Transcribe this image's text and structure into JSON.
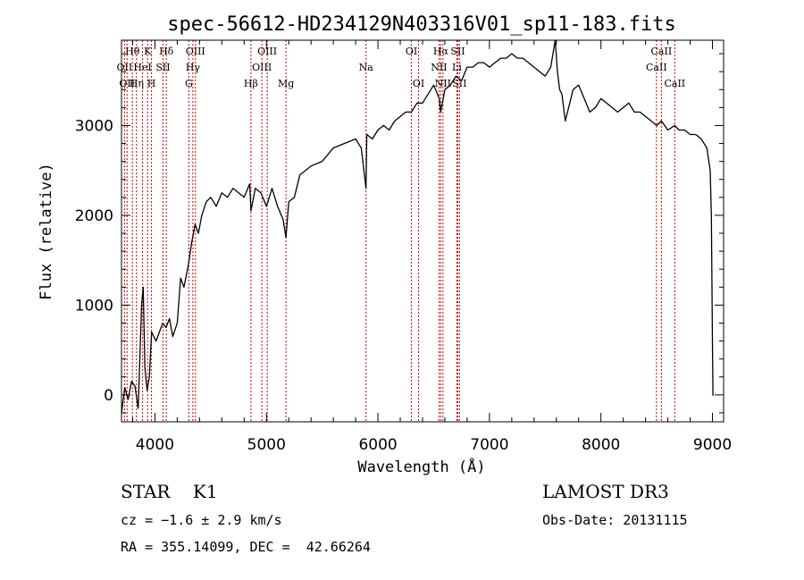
{
  "chart_data": {
    "type": "line",
    "title": "spec-56612-HD234129N403316V01_sp11-183.fits",
    "xlabel": "Wavelength (Å)",
    "ylabel": "Flux (relative)",
    "xlim": [
      3700,
      9100
    ],
    "ylim": [
      -300,
      3950
    ],
    "xticks": [
      4000,
      5000,
      6000,
      7000,
      8000,
      9000
    ],
    "yticks": [
      0,
      1000,
      2000,
      3000
    ],
    "grid": false,
    "series": [
      {
        "x": [
          3700,
          3730,
          3760,
          3790,
          3820,
          3850,
          3880,
          3895,
          3910,
          3930,
          3950,
          3970,
          3990,
          4010,
          4040,
          4070,
          4100,
          4130,
          4160,
          4200,
          4230,
          4260,
          4300,
          4330,
          4360,
          4390,
          4420,
          4460,
          4500,
          4550,
          4600,
          4650,
          4700,
          4750,
          4800,
          4850,
          4861,
          4900,
          4950,
          5000,
          5050,
          5100,
          5150,
          5175,
          5200,
          5250,
          5300,
          5400,
          5500,
          5600,
          5700,
          5800,
          5850,
          5893,
          5900,
          5950,
          6000,
          6050,
          6100,
          6150,
          6200,
          6250,
          6300,
          6350,
          6400,
          6450,
          6500,
          6550,
          6563,
          6600,
          6650,
          6700,
          6750,
          6800,
          6850,
          6900,
          6950,
          7000,
          7050,
          7100,
          7150,
          7200,
          7250,
          7300,
          7350,
          7400,
          7450,
          7500,
          7550,
          7590,
          7610,
          7630,
          7650,
          7680,
          7700,
          7720,
          7750,
          7800,
          7850,
          7900,
          7950,
          8000,
          8050,
          8100,
          8150,
          8200,
          8250,
          8300,
          8350,
          8400,
          8450,
          8500,
          8542,
          8600,
          8662,
          8700,
          8750,
          8800,
          8850,
          8900,
          8950,
          8980,
          8990,
          9000,
          9005
        ],
        "y": [
          -200,
          80,
          -50,
          150,
          100,
          -150,
          1000,
          1200,
          300,
          50,
          200,
          700,
          650,
          600,
          700,
          800,
          750,
          850,
          650,
          800,
          1300,
          1200,
          1450,
          1700,
          1900,
          1800,
          2000,
          2150,
          2200,
          2100,
          2250,
          2200,
          2300,
          2250,
          2200,
          2350,
          2050,
          2300,
          2250,
          2100,
          2300,
          2100,
          1950,
          1750,
          2150,
          2200,
          2450,
          2550,
          2600,
          2750,
          2800,
          2850,
          2750,
          2300,
          2900,
          2850,
          2950,
          3000,
          2950,
          3050,
          3100,
          3150,
          3150,
          3250,
          3250,
          3350,
          3450,
          3300,
          3150,
          3400,
          3450,
          3550,
          3500,
          3650,
          3650,
          3700,
          3700,
          3650,
          3700,
          3750,
          3750,
          3800,
          3750,
          3750,
          3700,
          3650,
          3600,
          3550,
          3650,
          3950,
          3600,
          3400,
          3350,
          3050,
          3150,
          3250,
          3400,
          3450,
          3300,
          3150,
          3200,
          3300,
          3250,
          3200,
          3150,
          3200,
          3250,
          3150,
          3150,
          3100,
          3050,
          3000,
          3050,
          2950,
          3000,
          2950,
          2950,
          2900,
          2900,
          2850,
          2750,
          2500,
          2000,
          600,
          -10
        ]
      }
    ],
    "lines": [
      {
        "x": 3727,
        "label": "OII",
        "row": 2
      },
      {
        "x": 3750,
        "label": "OII",
        "row": 3
      },
      {
        "x": 3798,
        "label": "Hθ",
        "row": 1
      },
      {
        "x": 3835,
        "label": "Hη",
        "row": 3
      },
      {
        "x": 3889,
        "label": "HeI",
        "row": 2
      },
      {
        "x": 3934,
        "label": "K",
        "row": 1
      },
      {
        "x": 3969,
        "label": "H",
        "row": 3
      },
      {
        "x": 4072,
        "label": "SII",
        "row": 2
      },
      {
        "x": 4102,
        "label": "Hδ",
        "row": 1
      },
      {
        "x": 4304,
        "label": "G",
        "row": 3
      },
      {
        "x": 4340,
        "label": "Hγ",
        "row": 2
      },
      {
        "x": 4363,
        "label": "OIII",
        "row": 1
      },
      {
        "x": 4861,
        "label": "Hβ",
        "row": 3
      },
      {
        "x": 4959,
        "label": "OIII",
        "row": 2
      },
      {
        "x": 5007,
        "label": "OIII",
        "row": 1
      },
      {
        "x": 5175,
        "label": "Mg",
        "row": 3
      },
      {
        "x": 5893,
        "label": "Na",
        "row": 2
      },
      {
        "x": 6300,
        "label": "OI",
        "row": 1
      },
      {
        "x": 6364,
        "label": "OI",
        "row": 3
      },
      {
        "x": 6548,
        "label": "NII",
        "row": 2
      },
      {
        "x": 6563,
        "label": "Hα",
        "row": 1
      },
      {
        "x": 6583,
        "label": "NII",
        "row": 3
      },
      {
        "x": 6708,
        "label": "Li",
        "row": 2
      },
      {
        "x": 6716,
        "label": "SII",
        "row": 1
      },
      {
        "x": 6731,
        "label": "SII",
        "row": 3
      },
      {
        "x": 8498,
        "label": "CaII",
        "row": 2
      },
      {
        "x": 8542,
        "label": "CaII",
        "row": 1
      },
      {
        "x": 8662,
        "label": "CaII",
        "row": 3
      }
    ]
  },
  "footer": {
    "class_label": "STAR    K1",
    "survey": "LAMOST DR3",
    "cz": "cz = −1.6 ± 2.9 km/s",
    "obs_date": "Obs-Date: 20131115",
    "coords": "RA = 355.14099, DEC =  42.66264"
  },
  "colors": {
    "spectrum": "#000000",
    "line_markers": "#cc0000",
    "axes": "#000000"
  }
}
